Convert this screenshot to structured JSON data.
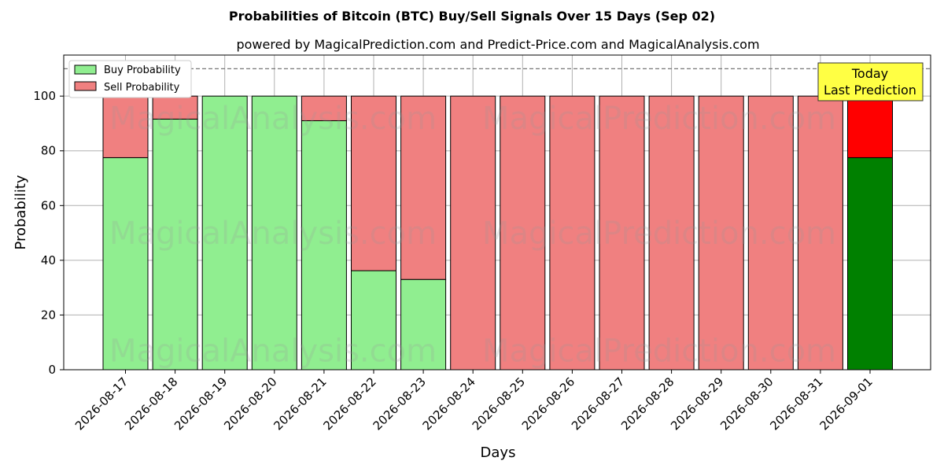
{
  "chart_data": {
    "type": "bar",
    "stacked": true,
    "title": "Probabilities of Bitcoin (BTC) Buy/Sell Signals Over 15 Days (Sep 02)",
    "subtitle": "powered by MagicalPrediction.com and Predict-Price.com and MagicalAnalysis.com",
    "xlabel": "Days",
    "ylabel": "Probability",
    "ylim": [
      0,
      115
    ],
    "yticks": [
      0,
      20,
      40,
      60,
      80,
      100
    ],
    "grid": true,
    "legend_position": "top-left",
    "reference_line": 110,
    "categories": [
      "2026-08-17",
      "2026-08-18",
      "2026-08-19",
      "2026-08-20",
      "2026-08-21",
      "2026-08-22",
      "2026-08-23",
      "2026-08-24",
      "2026-08-25",
      "2026-08-26",
      "2026-08-27",
      "2026-08-28",
      "2026-08-29",
      "2026-08-30",
      "2026-08-31",
      "2026-09-01"
    ],
    "series": [
      {
        "name": "Buy Probability",
        "color": "#90ee90",
        "highlight_color": "#008000",
        "values": [
          77.5,
          91.6,
          100,
          100,
          91.0,
          36.2,
          33.0,
          0,
          0,
          0,
          0,
          0,
          0,
          0,
          0,
          77.5
        ]
      },
      {
        "name": "Sell Probability",
        "color": "#f08080",
        "highlight_color": "#ff0000",
        "values": [
          22.5,
          8.4,
          0,
          0,
          9.0,
          63.8,
          67.0,
          100,
          100,
          100,
          100,
          100,
          100,
          100,
          100,
          22.5
        ]
      }
    ],
    "highlight_index": 15,
    "annotation": {
      "lines": [
        "Today",
        "Last Prediction"
      ],
      "background": "#ffff44"
    },
    "watermarks": [
      "MagicalAnalysis.com",
      "MagicalPrediction.com"
    ]
  }
}
